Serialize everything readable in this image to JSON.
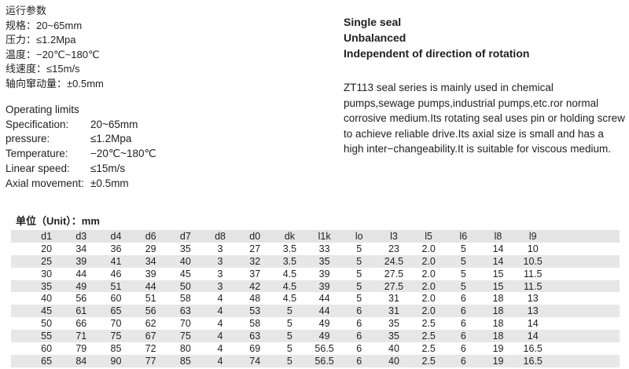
{
  "cn_params": {
    "title": "运行参数",
    "rows": [
      {
        "label": "规格：",
        "value": "20~65mm"
      },
      {
        "label": "压力：",
        "value": "≤1.2Mpa"
      },
      {
        "label": "温度：",
        "value": "−20℃~180℃"
      },
      {
        "label": "线速度：",
        "value": "≤15m/s"
      },
      {
        "label": "轴向窜动量：",
        "value": "±0.5mm"
      }
    ]
  },
  "en_params": {
    "title": "Operating limits",
    "rows": [
      {
        "label": "Specification:",
        "value": "20~65mm"
      },
      {
        "label": "pressure:",
        "value": "≤1.2Mpa"
      },
      {
        "label": "Temperature:",
        "value": "−20℃~180℃"
      },
      {
        "label": "Linear speed:",
        "value": "≤15m/s"
      },
      {
        "label": "Axial movement:",
        "value": "±0.5mm"
      }
    ]
  },
  "features": [
    "Single seal",
    "Unbalanced",
    "Independent of direction of rotation"
  ],
  "description": "ZT113 seal series is mainly used in chemical pumps,sewage pumps,industrial pumps,etc.ror normal corrosive medium.Its rotating seal uses pin or holding screw to achieve reliable drive.Its axial size is small and has a high inter−changeability.It is suitable for viscous medium.",
  "dimensions_table": {
    "unit_label": "单位（Unit）：mm",
    "headers": [
      "d1",
      "d3",
      "d4",
      "d6",
      "d7",
      "d8",
      "d0",
      "dk",
      "l1k",
      "lo",
      "l3",
      "l5",
      "l6",
      "l8",
      "l9"
    ],
    "rows": [
      [
        "20",
        "34",
        "36",
        "29",
        "35",
        "3",
        "27",
        "3.5",
        "33",
        "5",
        "23",
        "2.0",
        "5",
        "14",
        "10"
      ],
      [
        "25",
        "39",
        "41",
        "34",
        "40",
        "3",
        "32",
        "3.5",
        "35",
        "5",
        "24.5",
        "2.0",
        "5",
        "14",
        "10.5"
      ],
      [
        "30",
        "44",
        "46",
        "39",
        "45",
        "3",
        "37",
        "4.5",
        "39",
        "5",
        "27.5",
        "2.0",
        "5",
        "15",
        "11.5"
      ],
      [
        "35",
        "49",
        "51",
        "44",
        "50",
        "3",
        "42",
        "4.5",
        "39",
        "5",
        "27.5",
        "2.0",
        "5",
        "15",
        "11.5"
      ],
      [
        "40",
        "56",
        "60",
        "51",
        "58",
        "4",
        "48",
        "4.5",
        "44",
        "5",
        "31",
        "2.0",
        "6",
        "18",
        "13"
      ],
      [
        "45",
        "61",
        "65",
        "56",
        "63",
        "4",
        "53",
        "5",
        "44",
        "6",
        "31",
        "2.0",
        "6",
        "18",
        "13"
      ],
      [
        "50",
        "66",
        "70",
        "62",
        "70",
        "4",
        "58",
        "5",
        "49",
        "6",
        "35",
        "2.5",
        "6",
        "18",
        "14"
      ],
      [
        "55",
        "71",
        "75",
        "67",
        "75",
        "4",
        "63",
        "5",
        "49",
        "6",
        "35",
        "2.5",
        "6",
        "18",
        "14"
      ],
      [
        "60",
        "79",
        "85",
        "72",
        "80",
        "4",
        "69",
        "5",
        "56.5",
        "6",
        "40",
        "2.5",
        "6",
        "19",
        "16.5"
      ],
      [
        "65",
        "84",
        "90",
        "77",
        "85",
        "4",
        "74",
        "5",
        "56.5",
        "6",
        "40",
        "2.5",
        "6",
        "19",
        "16.5"
      ]
    ]
  }
}
